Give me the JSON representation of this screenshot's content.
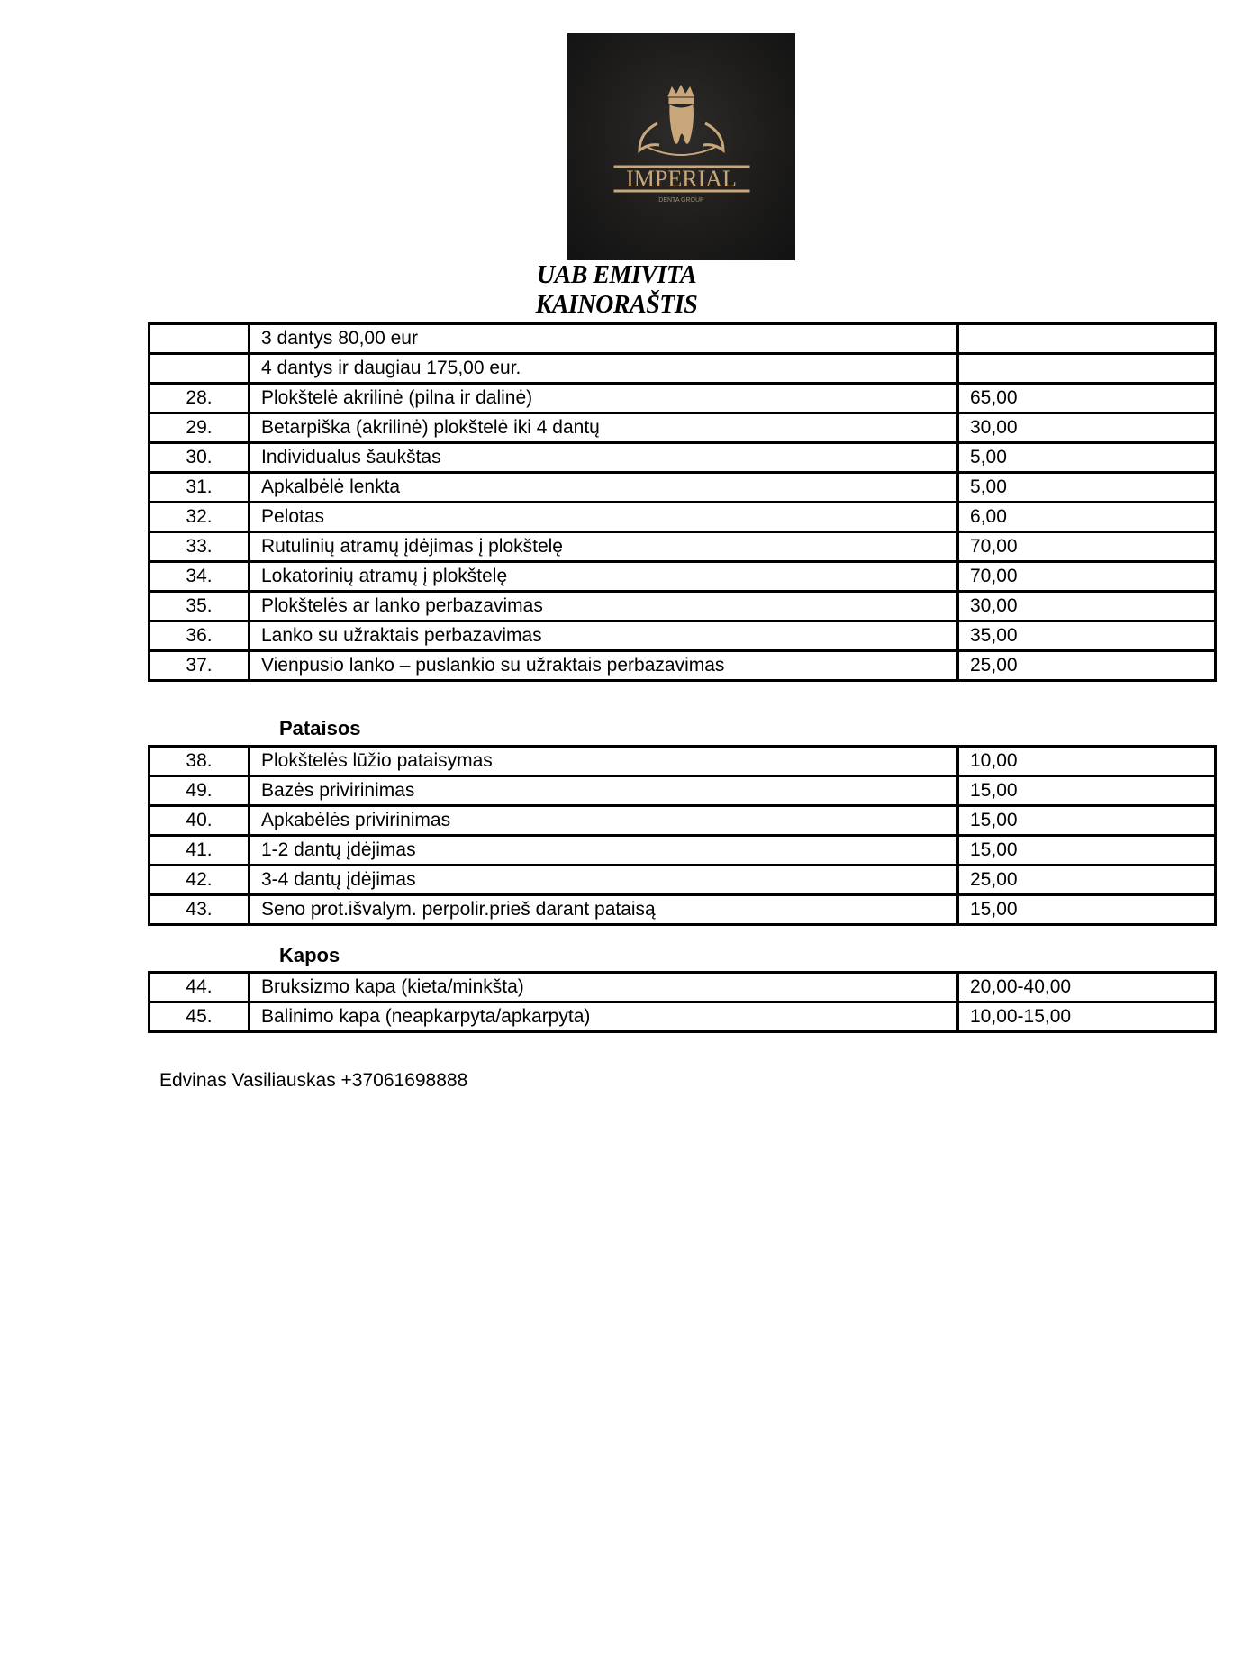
{
  "logo": {
    "brand": "IMPERIAL",
    "tagline": "DENTA GROUP",
    "background": "#1c1b1a",
    "accent": "#c9a77a"
  },
  "header": {
    "company": "UAB EMIVITA",
    "title": "KAINORAŠTIS"
  },
  "table1": [
    {
      "no": "",
      "name": "3 dantys 80,00 eur",
      "price": ""
    },
    {
      "no": "",
      "name": "4 dantys ir daugiau 175,00 eur.",
      "price": ""
    },
    {
      "no": "28.",
      "name": "Plokštelė akrilinė (pilna ir dalinė)",
      "price": "65,00"
    },
    {
      "no": "29.",
      "name": "Betarpiška (akrilinė) plokštelė iki 4 dantų",
      "price": "30,00"
    },
    {
      "no": "30.",
      "name": "Individualus šaukštas",
      "price": "5,00"
    },
    {
      "no": "31.",
      "name": "Apkalbėlė lenkta",
      "price": "5,00"
    },
    {
      "no": "32.",
      "name": "Pelotas",
      "price": "6,00"
    },
    {
      "no": "33.",
      "name": "Rutulinių atramų įdėjimas į plokštelę",
      "price": "70,00"
    },
    {
      "no": "34.",
      "name": "Lokatorinių atramų į plokštelę",
      "price": "70,00"
    },
    {
      "no": "35.",
      "name": "Plokštelės ar lanko perbazavimas",
      "price": "30,00"
    },
    {
      "no": "36.",
      "name": "Lanko su užraktais perbazavimas",
      "price": "35,00"
    },
    {
      "no": "37.",
      "name": "Vienpusio lanko – puslankio su užraktais perbazavimas",
      "price": "25,00"
    }
  ],
  "section2": "Pataisos",
  "table2": [
    {
      "no": "38.",
      "name": "Plokštelės lūžio pataisymas",
      "price": "10,00"
    },
    {
      "no": "49.",
      "name": "Bazės privirinimas",
      "price": "15,00"
    },
    {
      "no": "40.",
      "name": "Apkabėlės privirinimas",
      "price": "15,00"
    },
    {
      "no": "41.",
      "name": "1-2 dantų įdėjimas",
      "price": "15,00"
    },
    {
      "no": "42.",
      "name": "3-4 dantų įdėjimas",
      "price": "25,00"
    },
    {
      "no": "43.",
      "name": "Seno prot.išvalym. perpolir.prieš darant pataisą",
      "price": "15,00"
    }
  ],
  "section3": "Kapos",
  "table3": [
    {
      "no": "44.",
      "name": "Bruksizmo kapa (kieta/minkšta)",
      "price": "20,00-40,00"
    },
    {
      "no": "45.",
      "name": "Balinimo kapa (neapkarpyta/apkarpyta)",
      "price": "10,00-15,00"
    }
  ],
  "footer": {
    "contact": "Edvinas Vasiliauskas +37061698888"
  }
}
